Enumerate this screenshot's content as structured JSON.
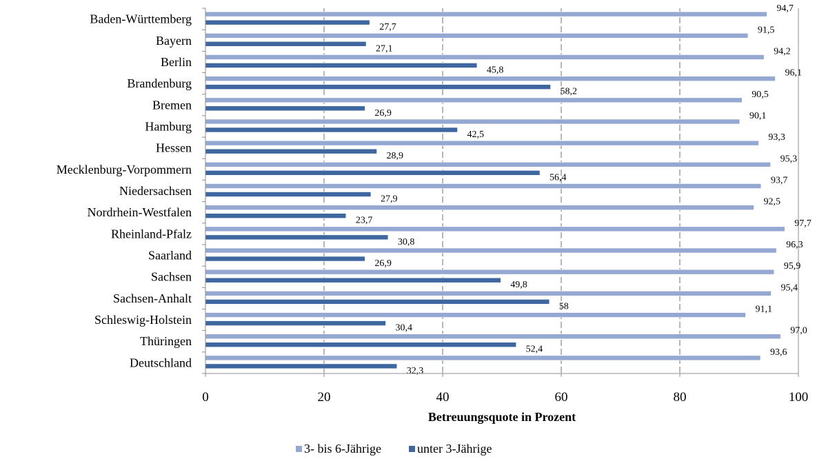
{
  "chart_data": {
    "type": "bar",
    "orientation": "horizontal",
    "categories": [
      "Baden-Württemberg",
      "Bayern",
      "Berlin",
      "Brandenburg",
      "Bremen",
      "Hamburg",
      "Hessen",
      "Mecklenburg-Vorpommern",
      "Niedersachsen",
      "Nordrhein-Westfalen",
      "Rheinland-Pfalz",
      "Saarland",
      "Sachsen",
      "Sachsen-Anhalt",
      "Schleswig-Holstein",
      "Thüringen",
      "Deutschland"
    ],
    "series": [
      {
        "name": "3- bis 6-Jährige",
        "color": "#95A8D2",
        "values": [
          94.7,
          91.5,
          94.2,
          96.1,
          90.5,
          90.1,
          93.3,
          95.3,
          93.7,
          92.5,
          97.7,
          96.3,
          95.9,
          95.4,
          91.1,
          97.0,
          93.6
        ],
        "labels": [
          "94,7",
          "91,5",
          "94,2",
          "96,1",
          "90,5",
          "90,1",
          "93,3",
          "95,3",
          "93,7",
          "92,5",
          "97,7",
          "96,3",
          "95,9",
          "95,4",
          "91,1",
          "97,0",
          "93,6"
        ]
      },
      {
        "name": "unter 3-Jährige",
        "color": "#3F679F",
        "values": [
          27.7,
          27.1,
          45.8,
          58.2,
          26.9,
          42.5,
          28.9,
          56.4,
          27.9,
          23.7,
          30.8,
          26.9,
          49.8,
          58,
          30.4,
          52.4,
          32.3
        ],
        "labels": [
          "27,7",
          "27,1",
          "45,8",
          "58,2",
          "26,9",
          "42,5",
          "28,9",
          "56,4",
          "27,9",
          "23,7",
          "30,8",
          "26,9",
          "49,8",
          "58",
          "30,4",
          "52,4",
          "32,3"
        ]
      }
    ],
    "xlabel": "Betreuungsquote in Prozent",
    "ylabel": "",
    "xlim": [
      0,
      100
    ],
    "ticks": [
      0,
      20,
      40,
      60,
      80,
      100
    ],
    "grid": true,
    "legend_position": "bottom"
  }
}
